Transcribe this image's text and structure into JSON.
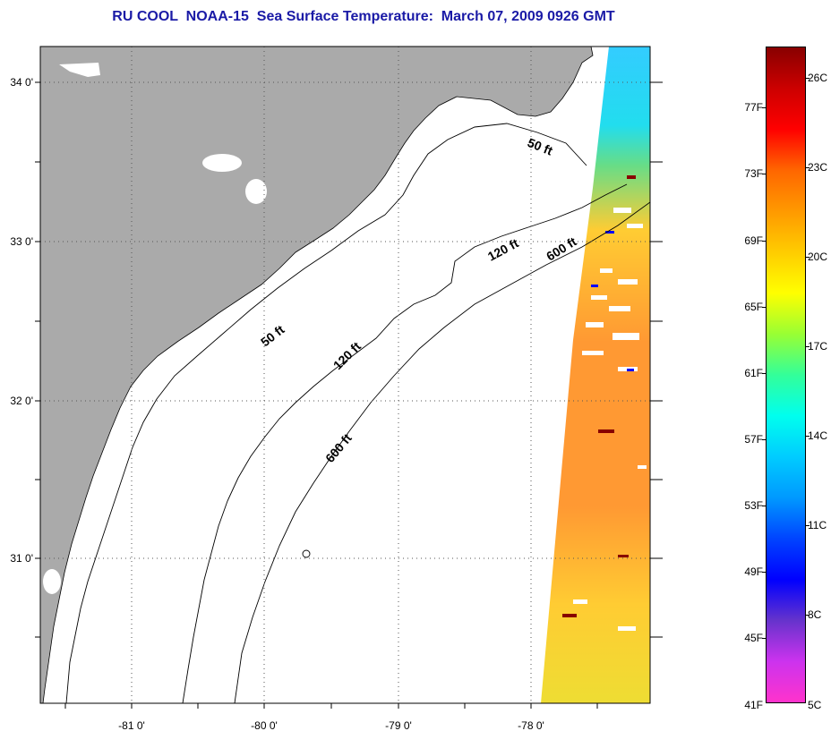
{
  "title": "RU COOL  NOAA-15  Sea Surface Temperature:  March 07, 2009 0926 GMT",
  "map": {
    "lon_labels": [
      "-81 0'",
      "-80 0'",
      "-79 0'",
      "-78 0'"
    ],
    "lat_labels": [
      "34 0'",
      "33 0'",
      "32 0'",
      "31 0'"
    ],
    "colors": {
      "land": "#aaaaaa",
      "ocean": "#ffffff",
      "grid": "#555555",
      "title": "#1a1aa6"
    }
  },
  "contours": {
    "upper_50": "50 ft",
    "upper_120": "120 ft",
    "upper_600": "600 ft",
    "lower_50": "50 ft",
    "lower_120": "120 ft",
    "lower_600": "600 ft"
  },
  "colorbar": {
    "fahrenheit": [
      "77F",
      "73F",
      "69F",
      "65F",
      "61F",
      "57F",
      "53F",
      "49F",
      "45F",
      "41F"
    ],
    "celsius": [
      "26C",
      "23C",
      "20C",
      "17C",
      "14C",
      "11C",
      "8C",
      "5C"
    ],
    "gradient": [
      "#ff33cc",
      "#cc33ee",
      "#6633cc",
      "#0000ff",
      "#0044ff",
      "#0099ff",
      "#00ccff",
      "#00ffee",
      "#33ff99",
      "#99ff33",
      "#ffff00",
      "#ffcc00",
      "#ff9900",
      "#ff6600",
      "#ff0000",
      "#cc0000",
      "#880000"
    ]
  }
}
